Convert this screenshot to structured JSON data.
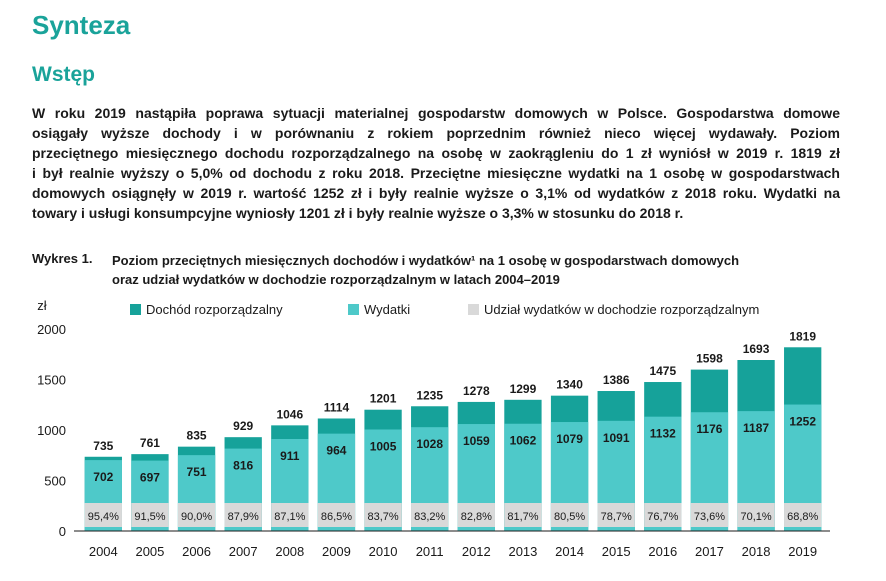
{
  "heading": "Synteza",
  "subheading": "Wstęp",
  "paragraph_lines": [
    "W roku 2019 nastąpiła poprawa sytuacji materialnej gospodarstw domowych w Polsce. Gospodarstwa domowe",
    "osiągały wyższe dochody i w porównaniu z rokiem poprzednim również nieco więcej wydawały. Poziom",
    "przeciętnego miesięcznego dochodu rozporządzalnego na osobę w zaokrągleniu do 1 zł wyniósł w 2019 r. 1819 zł",
    "i był realnie wyższy o 5,0% od dochodu z roku 2018. Przeciętne miesięczne wydatki na 1 osobę w gospodarstwach",
    "domowych osiągnęły w 2019 r. wartość 1252 zł i były realnie wyższe o 3,1% od wydatków z 2018 roku. Wydatki na",
    "towary i usługi konsumpcyjne wyniosły 1201 zł i były realnie wyższe o 3,3% w stosunku do 2018 r."
  ],
  "caption": {
    "label": "Wykres 1.",
    "line1": "Poziom przeciętnych miesięcznych dochodów i wydatków¹ na 1 osobę w gospodarstwach domowych",
    "line2": "oraz udział wydatków w dochodzie rozporządzalnym w latach 2004–2019"
  },
  "colors": {
    "income": "#16a29a",
    "expenses": "#4ec9c9",
    "share": "#d9d9d9",
    "heading": "#1aa39a"
  },
  "chart_data": {
    "type": "bar",
    "ylabel": "zł",
    "ylim": [
      0,
      2000
    ],
    "yticks": [
      0,
      500,
      1000,
      1500,
      2000
    ],
    "grid": false,
    "legend_position": "top",
    "categories": [
      "2004",
      "2005",
      "2006",
      "2007",
      "2008",
      "2009",
      "2010",
      "2011",
      "2012",
      "2013",
      "2014",
      "2015",
      "2016",
      "2017",
      "2018",
      "2019"
    ],
    "series": [
      {
        "name": "Dochód rozporządzalny",
        "values": [
          735,
          761,
          835,
          929,
          1046,
          1114,
          1201,
          1235,
          1278,
          1299,
          1340,
          1386,
          1475,
          1598,
          1693,
          1819
        ]
      },
      {
        "name": "Wydatki",
        "values": [
          702,
          697,
          751,
          816,
          911,
          964,
          1005,
          1028,
          1059,
          1062,
          1079,
          1091,
          1132,
          1176,
          1187,
          1252
        ]
      },
      {
        "name": "Udział wydatków w dochodzie rozporządzalnym",
        "values": [
          "95,4%",
          "91,5%",
          "90,0%",
          "87,9%",
          "87,1%",
          "86,5%",
          "83,7%",
          "83,2%",
          "82,8%",
          "81,7%",
          "80,5%",
          "78,7%",
          "76,7%",
          "73,6%",
          "70,1%",
          "68,8%"
        ]
      }
    ]
  }
}
